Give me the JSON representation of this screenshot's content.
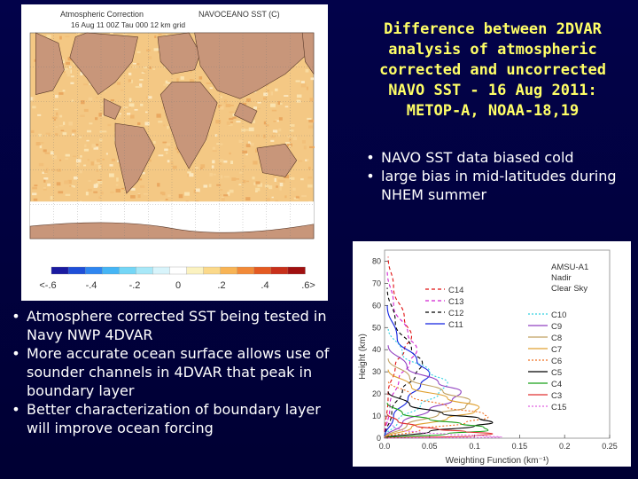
{
  "title": {
    "lines": [
      "Difference between 2DVAR",
      "analysis of atmospheric",
      "corrected and uncorrected",
      "NAVO SST - 16 Aug 2011:",
      "METOP-A, NOAA-18,19"
    ]
  },
  "right_bullets": [
    "NAVO SST data biased cold",
    "large bias in mid-latitudes during NHEM summer"
  ],
  "left_bullets": [
    "Atmosphere corrected SST being tested in Navy NWP 4DVAR",
    "More accurate ocean surface allows use of sounder channels in 4DVAR that peak in boundary layer",
    "Better characterization of boundary layer will improve ocean forcing"
  ],
  "map": {
    "header_left": "Atmospheric Correction",
    "header_right": "NAVOCEANO SST (C)",
    "subheader": "16 Aug 11 00Z  Tau 000    12 km grid",
    "colorbar_labels": [
      "<-.6",
      "-.4",
      "-.2",
      "0",
      ".2",
      ".4",
      ".6>"
    ],
    "colorbar_colors": [
      "#1a1aa0",
      "#1f4fd8",
      "#2f86f0",
      "#45b5f5",
      "#74d6f6",
      "#a8e8f8",
      "#d8f4fb",
      "#ffffff",
      "#fbf2c0",
      "#fbd98a",
      "#f8b455",
      "#f28a38",
      "#e45a22",
      "#c8301a",
      "#a01010"
    ],
    "colors": {
      "land": "#c8967a",
      "ocean": "#f4c884",
      "ice": "#ffffff"
    }
  },
  "chart_data": {
    "type": "line",
    "title": "",
    "xlabel": "Weighting Function (km⁻¹)",
    "ylabel": "Height (km)",
    "xlim": [
      0,
      0.25
    ],
    "ylim": [
      0,
      85
    ],
    "xticks": [
      "0.0",
      "0.05",
      "0.1",
      "0.15",
      "0.2",
      "0.25"
    ],
    "yticks": [
      "0",
      "10",
      "20",
      "30",
      "40",
      "50",
      "60",
      "70",
      "80"
    ],
    "annotation": [
      "AMSU-A1",
      "Nadir",
      "Clear Sky"
    ],
    "series": [
      {
        "name": "C14",
        "color": "#e01010",
        "dash": "4,3",
        "x": [
          0,
          0.004,
          0.012,
          0.022,
          0.03,
          0.022,
          0.01,
          0.004
        ],
        "y": [
          0,
          20,
          33,
          40,
          46,
          54,
          68,
          82
        ]
      },
      {
        "name": "C13",
        "color": "#d020d0",
        "dash": "4,3",
        "x": [
          0,
          0.006,
          0.016,
          0.028,
          0.036,
          0.026,
          0.01,
          0.003
        ],
        "y": [
          0,
          15,
          27,
          34,
          40,
          47,
          60,
          76
        ]
      },
      {
        "name": "C12",
        "color": "#000000",
        "dash": "4,3",
        "x": [
          0,
          0.008,
          0.02,
          0.034,
          0.042,
          0.03,
          0.012,
          0.003
        ],
        "y": [
          0,
          12,
          22,
          28,
          34,
          40,
          52,
          68
        ]
      },
      {
        "name": "C11",
        "color": "#1020e0",
        "dash": "",
        "x": [
          0,
          0.01,
          0.026,
          0.04,
          0.05,
          0.036,
          0.014,
          0.003
        ],
        "y": [
          0,
          10,
          18,
          24,
          29,
          35,
          45,
          60
        ]
      },
      {
        "name": "C10",
        "color": "#30d0e0",
        "dash": "2,2",
        "x": [
          0,
          0.015,
          0.04,
          0.06,
          0.07,
          0.05,
          0.02,
          0.004
        ],
        "y": [
          0,
          8,
          15,
          20,
          25,
          30,
          38,
          50
        ]
      },
      {
        "name": "C9",
        "color": "#9040c0",
        "dash": "",
        "x": [
          0,
          0.02,
          0.05,
          0.075,
          0.085,
          0.06,
          0.025,
          0.004
        ],
        "y": [
          0,
          7,
          13,
          17,
          21,
          25,
          32,
          42
        ]
      },
      {
        "name": "C8",
        "color": "#c0a060",
        "dash": "",
        "x": [
          0,
          0.025,
          0.06,
          0.09,
          0.095,
          0.065,
          0.028,
          0.004
        ],
        "y": [
          0,
          6,
          11,
          14,
          17,
          21,
          27,
          36
        ]
      },
      {
        "name": "C7",
        "color": "#e0a030",
        "dash": "",
        "x": [
          0,
          0.03,
          0.07,
          0.1,
          0.105,
          0.07,
          0.03,
          0.004
        ],
        "y": [
          0,
          5,
          9,
          12,
          14,
          18,
          23,
          31
        ]
      },
      {
        "name": "C6",
        "color": "#f07020",
        "dash": "2,2",
        "x": [
          0,
          0.04,
          0.09,
          0.115,
          0.11,
          0.07,
          0.03,
          0.004
        ],
        "y": [
          0,
          4,
          7,
          9.5,
          11,
          14,
          19,
          26
        ]
      },
      {
        "name": "C5",
        "color": "#000000",
        "dash": "",
        "x": [
          0,
          0.05,
          0.1,
          0.12,
          0.105,
          0.065,
          0.028,
          0.004
        ],
        "y": [
          0,
          3,
          5.5,
          7,
          9,
          11,
          15,
          21
        ]
      },
      {
        "name": "C4",
        "color": "#18a018",
        "dash": "",
        "x": [
          0,
          0.07,
          0.115,
          0.11,
          0.085,
          0.05,
          0.02,
          0.003
        ],
        "y": [
          0,
          2,
          3.5,
          5,
          6.5,
          8.5,
          11,
          16
        ]
      },
      {
        "name": "C3",
        "color": "#e03030",
        "dash": "",
        "x": [
          0,
          0.1,
          0.12,
          0.09,
          0.06,
          0.035,
          0.015,
          0.003
        ],
        "y": [
          0,
          1,
          2,
          3,
          4,
          5.5,
          7.5,
          11
        ]
      },
      {
        "name": "C15",
        "color": "#e060e0",
        "dash": "2,2",
        "x": [
          0,
          0.13,
          0.11,
          0.07,
          0.04,
          0.02,
          0.01,
          0.002
        ],
        "y": [
          0,
          0.5,
          1,
          1.8,
          2.6,
          3.5,
          5,
          8
        ]
      }
    ]
  }
}
